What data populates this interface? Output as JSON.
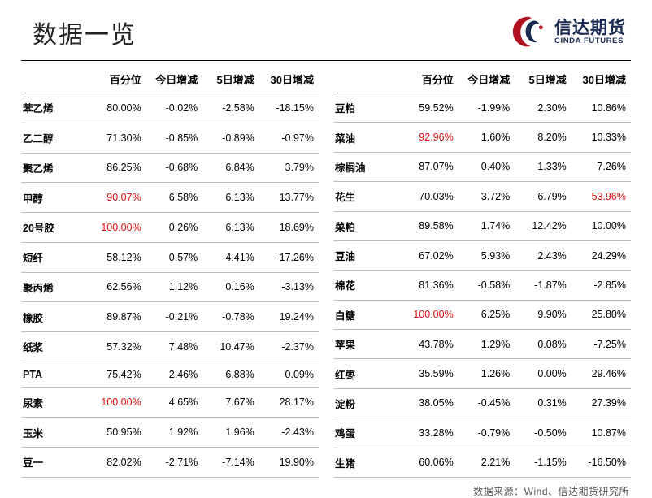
{
  "title": "数据一览",
  "logo": {
    "cn": "信达期货",
    "en": "CINDA FUTURES"
  },
  "columns": [
    "百分位",
    "今日增减",
    "5日增减",
    "30日增减"
  ],
  "left_rows": [
    {
      "name": "苯乙烯",
      "pct": "80.00%",
      "d1": "-0.02%",
      "d5": "-2.58%",
      "d30": "-18.15%"
    },
    {
      "name": "乙二醇",
      "pct": "71.30%",
      "d1": "-0.85%",
      "d5": "-0.89%",
      "d30": "-0.97%"
    },
    {
      "name": "聚乙烯",
      "pct": "86.25%",
      "d1": "-0.68%",
      "d5": "6.84%",
      "d30": "3.79%"
    },
    {
      "name": "甲醇",
      "pct": "90.07%",
      "pct_hl": true,
      "d1": "6.58%",
      "d5": "6.13%",
      "d30": "13.77%"
    },
    {
      "name": "20号胶",
      "pct": "100.00%",
      "pct_hl": true,
      "d1": "0.26%",
      "d5": "6.13%",
      "d30": "18.69%"
    },
    {
      "name": "短纤",
      "pct": "58.12%",
      "d1": "0.57%",
      "d5": "-4.41%",
      "d30": "-17.26%"
    },
    {
      "name": "聚丙烯",
      "pct": "62.56%",
      "d1": "1.12%",
      "d5": "0.16%",
      "d30": "-3.13%"
    },
    {
      "name": "橡胶",
      "pct": "89.87%",
      "d1": "-0.21%",
      "d5": "-0.78%",
      "d30": "19.24%"
    },
    {
      "name": "纸浆",
      "pct": "57.32%",
      "d1": "7.48%",
      "d5": "10.47%",
      "d30": "-2.37%"
    },
    {
      "name": "PTA",
      "pct": "75.42%",
      "d1": "2.46%",
      "d5": "6.88%",
      "d30": "0.09%"
    },
    {
      "name": "尿素",
      "pct": "100.00%",
      "pct_hl": true,
      "d1": "4.65%",
      "d5": "7.67%",
      "d30": "28.17%"
    },
    {
      "name": "玉米",
      "pct": "50.95%",
      "d1": "1.92%",
      "d5": "1.96%",
      "d30": "-2.43%"
    },
    {
      "name": "豆一",
      "pct": "82.02%",
      "d1": "-2.71%",
      "d5": "-7.14%",
      "d30": "19.90%"
    }
  ],
  "right_rows": [
    {
      "name": "豆粕",
      "pct": "59.52%",
      "d1": "-1.99%",
      "d5": "2.30%",
      "d30": "10.86%"
    },
    {
      "name": "菜油",
      "pct": "92.96%",
      "pct_hl": true,
      "d1": "1.60%",
      "d5": "8.20%",
      "d30": "10.33%"
    },
    {
      "name": "棕榈油",
      "pct": "87.07%",
      "d1": "0.40%",
      "d5": "1.33%",
      "d30": "7.26%"
    },
    {
      "name": "花生",
      "pct": "70.03%",
      "d1": "3.72%",
      "d5": "-6.79%",
      "d30": "53.96%",
      "d30_hl": true
    },
    {
      "name": "菜粕",
      "pct": "89.58%",
      "d1": "1.74%",
      "d5": "12.42%",
      "d30": "10.00%"
    },
    {
      "name": "豆油",
      "pct": "67.02%",
      "d1": "5.93%",
      "d5": "2.43%",
      "d30": "24.29%"
    },
    {
      "name": "棉花",
      "pct": "81.36%",
      "d1": "-0.58%",
      "d5": "-1.87%",
      "d30": "-2.85%"
    },
    {
      "name": "白糖",
      "pct": "100.00%",
      "pct_hl": true,
      "d1": "6.25%",
      "d5": "9.90%",
      "d30": "25.80%"
    },
    {
      "name": "苹果",
      "pct": "43.78%",
      "d1": "1.29%",
      "d5": "0.08%",
      "d30": "-7.25%"
    },
    {
      "name": "红枣",
      "pct": "35.59%",
      "d1": "1.26%",
      "d5": "0.00%",
      "d30": "29.46%"
    },
    {
      "name": "淀粉",
      "pct": "38.05%",
      "d1": "-0.45%",
      "d5": "0.31%",
      "d30": "27.39%"
    },
    {
      "name": "鸡蛋",
      "pct": "33.28%",
      "d1": "-0.79%",
      "d5": "-0.50%",
      "d30": "10.87%"
    },
    {
      "name": "生猪",
      "pct": "60.06%",
      "d1": "2.21%",
      "d5": "-1.15%",
      "d30": "-16.50%"
    }
  ],
  "source": "数据来源：Wind、信达期货研究所"
}
